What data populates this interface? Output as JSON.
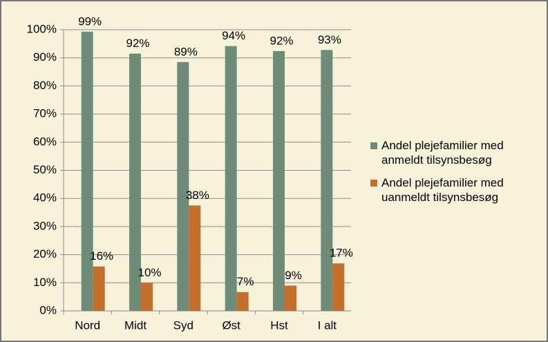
{
  "chart_data": {
    "type": "bar",
    "categories": [
      "Nord",
      "Midt",
      "Syd",
      "Øst",
      "Hst",
      "I alt"
    ],
    "series": [
      {
        "name": "Andel plejefamilier med anmeldt tilsynsbesøg",
        "color": "#6e8c78",
        "values": [
          99.3,
          91.5,
          88.5,
          94.2,
          92.4,
          92.8
        ],
        "value_labels": [
          "99%",
          "92%",
          "89%",
          "94%",
          "92%",
          "93%"
        ]
      },
      {
        "name": "Andel plejefamilier med uanmeldt tilsynsbesøg",
        "color": "#c66f2c",
        "values": [
          15.8,
          10,
          37.5,
          6.7,
          9,
          16.9
        ],
        "value_labels": [
          "16%",
          "10%",
          "38%",
          "7%",
          "9%",
          "17%"
        ]
      }
    ],
    "ylim": [
      0,
      100
    ],
    "yticks": [
      {
        "value": 0,
        "label": "0%"
      },
      {
        "value": 10,
        "label": "10%"
      },
      {
        "value": 20,
        "label": "20%"
      },
      {
        "value": 30,
        "label": "30%"
      },
      {
        "value": 40,
        "label": "40%"
      },
      {
        "value": 50,
        "label": "50%"
      },
      {
        "value": 60,
        "label": "60%"
      },
      {
        "value": 70,
        "label": "70%"
      },
      {
        "value": 80,
        "label": "80%"
      },
      {
        "value": 90,
        "label": "90%"
      },
      {
        "value": 100,
        "label": "100%"
      }
    ],
    "grid": true,
    "legend": "right"
  }
}
